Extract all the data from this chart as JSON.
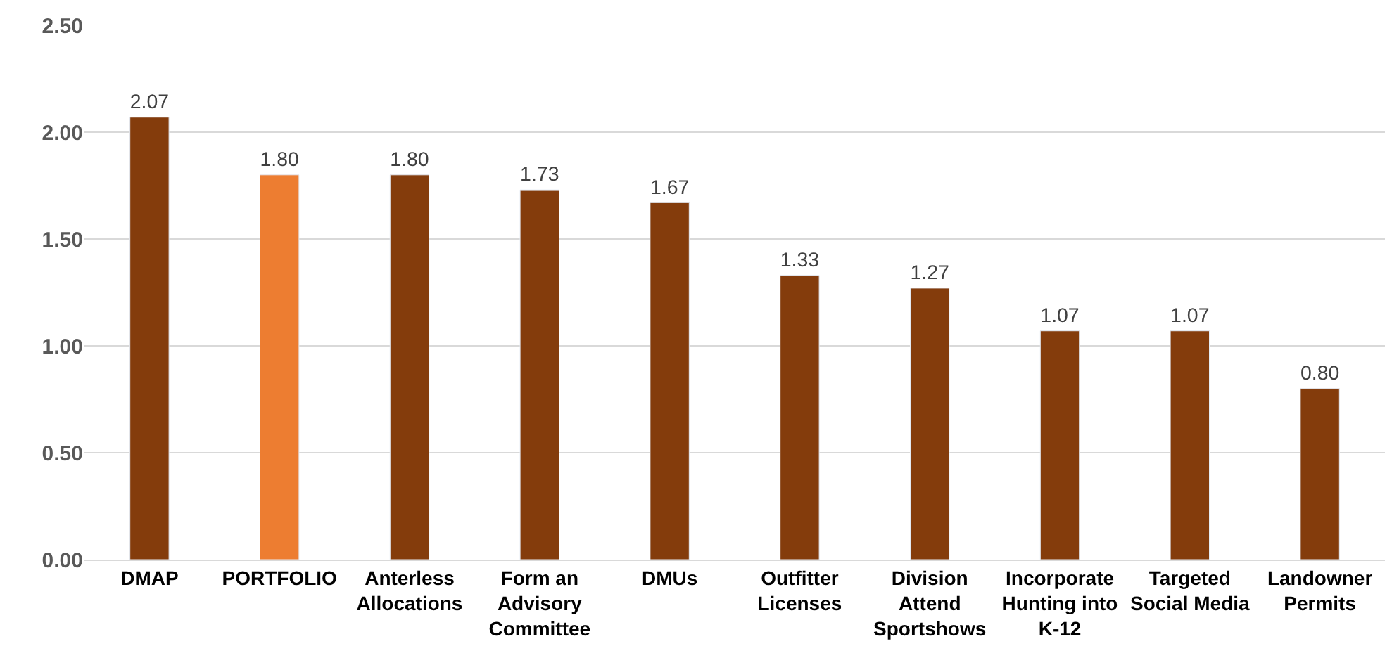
{
  "chart_data": {
    "type": "bar",
    "categories": [
      "DMAP",
      "PORTFOLIO",
      "Anterless Allocations",
      "Form an Advisory Committee",
      "DMUs",
      "Outfitter Licenses",
      "Division Attend Sportshows",
      "Incorporate Hunting into K-12",
      "Targeted Social Media",
      "Landowner Permits"
    ],
    "values": [
      2.07,
      1.8,
      1.8,
      1.73,
      1.67,
      1.33,
      1.27,
      1.07,
      1.07,
      0.8
    ],
    "value_labels": [
      "2.07",
      "1.80",
      "1.80",
      "1.73",
      "1.67",
      "1.33",
      "1.27",
      "1.07",
      "1.07",
      "0.80"
    ],
    "colors": [
      "#843c0c",
      "#ed7d31",
      "#843c0c",
      "#843c0c",
      "#843c0c",
      "#843c0c",
      "#843c0c",
      "#843c0c",
      "#843c0c",
      "#843c0c"
    ],
    "ylim": [
      0,
      2.5
    ],
    "yticks": [
      {
        "value": 0,
        "label": "0.00"
      },
      {
        "value": 0.5,
        "label": "0.50"
      },
      {
        "value": 1,
        "label": "1.00"
      },
      {
        "value": 1.5,
        "label": "1.50"
      },
      {
        "value": 2,
        "label": "2.00"
      },
      {
        "value": 2.5,
        "label": "2.50"
      }
    ],
    "grid": "y",
    "legend": false
  }
}
